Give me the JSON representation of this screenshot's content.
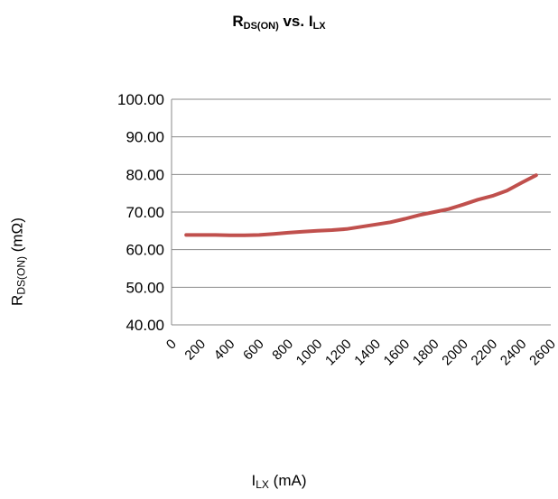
{
  "chart_data": {
    "type": "line",
    "title": {
      "main": "R",
      "sub": "DS(ON)",
      "mid": " vs. I",
      "sub2": "LX"
    },
    "ylabel": {
      "main": "R",
      "sub": "DS(ON)",
      "unit": " (mΩ)"
    },
    "xlabel": {
      "main": "I",
      "sub": "LX",
      "unit": " (mA)"
    },
    "ylim": [
      40,
      100
    ],
    "yticks": [
      "40.00",
      "50.00",
      "60.00",
      "70.00",
      "80.00",
      "90.00",
      "100.00"
    ],
    "xticks": [
      "0",
      "200",
      "400",
      "600",
      "800",
      "1000",
      "1200",
      "1400",
      "1600",
      "1800",
      "2000",
      "2200",
      "2400",
      "2600"
    ],
    "grid": true,
    "line_color": "#c0504d",
    "series": [
      {
        "x": [
          100,
          200,
          300,
          400,
          500,
          600,
          700,
          800,
          900,
          1000,
          1100,
          1200,
          1300,
          1400,
          1500,
          1600,
          1700,
          1800,
          1900,
          2000,
          2100,
          2200,
          2300,
          2400,
          2500
        ],
        "values": [
          63.9,
          63.9,
          63.9,
          63.8,
          63.8,
          63.9,
          64.2,
          64.5,
          64.8,
          65.0,
          65.2,
          65.5,
          66.1,
          66.7,
          67.3,
          68.2,
          69.2,
          70.0,
          70.8,
          72.0,
          73.3,
          74.3,
          75.7,
          77.8,
          79.8
        ]
      }
    ]
  }
}
